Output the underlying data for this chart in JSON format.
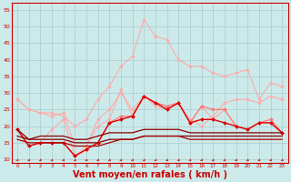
{
  "bg_color": "#cceaea",
  "grid_color": "#aacccc",
  "xlabel": "Vent moyen/en rafales ( km/h )",
  "xlabel_color": "#cc0000",
  "xlabel_fontsize": 7,
  "tick_color": "#cc0000",
  "ylim": [
    9,
    57
  ],
  "yticks": [
    10,
    15,
    20,
    25,
    30,
    35,
    40,
    45,
    50,
    55
  ],
  "xticks": [
    0,
    1,
    2,
    3,
    4,
    5,
    6,
    7,
    8,
    9,
    10,
    11,
    12,
    13,
    14,
    15,
    16,
    17,
    18,
    19,
    20,
    21,
    22,
    23
  ],
  "series": [
    {
      "color": "#ffaaaa",
      "lw": 0.8,
      "marker": "D",
      "ms": 1.8,
      "data": [
        28,
        25,
        24,
        24,
        23,
        20,
        22,
        28,
        32,
        38,
        41,
        52,
        47,
        46,
        40,
        38,
        38,
        36,
        35,
        36,
        37,
        28,
        33,
        32
      ]
    },
    {
      "color": "#ffaaaa",
      "lw": 0.8,
      "marker": "D",
      "ms": 1.8,
      "data": [
        19,
        14,
        15,
        19,
        22,
        11,
        14,
        20,
        22,
        31,
        23,
        29,
        27,
        26,
        27,
        21,
        26,
        22,
        25,
        20,
        19,
        21,
        21,
        18
      ]
    },
    {
      "color": "#ffaaaa",
      "lw": 0.8,
      "marker": "D",
      "ms": 1.8,
      "data": [
        28,
        25,
        24,
        23,
        24,
        14,
        14,
        22,
        25,
        30,
        25,
        29,
        26,
        25,
        27,
        22,
        20,
        23,
        27,
        28,
        28,
        27,
        29,
        28
      ]
    },
    {
      "color": "#ff7777",
      "lw": 0.9,
      "marker": "D",
      "ms": 2.0,
      "data": [
        19,
        14,
        15,
        15,
        15,
        11,
        13,
        15,
        21,
        23,
        23,
        29,
        27,
        26,
        27,
        21,
        26,
        25,
        25,
        20,
        19,
        21,
        22,
        18
      ]
    },
    {
      "color": "#dd0000",
      "lw": 1.0,
      "marker": "D",
      "ms": 2.0,
      "data": [
        19,
        14,
        15,
        15,
        15,
        11,
        13,
        15,
        21,
        22,
        23,
        29,
        27,
        25,
        27,
        21,
        22,
        22,
        21,
        20,
        19,
        21,
        21,
        18
      ]
    },
    {
      "color": "#880000",
      "lw": 0.9,
      "marker": null,
      "ms": 0,
      "data": [
        19,
        16,
        17,
        17,
        17,
        16,
        16,
        17,
        18,
        18,
        18,
        19,
        19,
        19,
        19,
        18,
        18,
        18,
        18,
        18,
        18,
        18,
        18,
        18
      ]
    },
    {
      "color": "#880000",
      "lw": 0.9,
      "marker": null,
      "ms": 0,
      "data": [
        17,
        16,
        16,
        16,
        16,
        15,
        15,
        15,
        16,
        16,
        16,
        17,
        17,
        17,
        17,
        17,
        17,
        17,
        17,
        17,
        17,
        17,
        17,
        17
      ]
    },
    {
      "color": "#aa0000",
      "lw": 0.9,
      "marker": null,
      "ms": 0,
      "data": [
        16,
        15,
        15,
        15,
        15,
        14,
        14,
        14,
        15,
        16,
        16,
        17,
        17,
        17,
        17,
        16,
        16,
        16,
        16,
        16,
        16,
        16,
        16,
        16
      ]
    }
  ],
  "arrow_color": "#cc2222"
}
